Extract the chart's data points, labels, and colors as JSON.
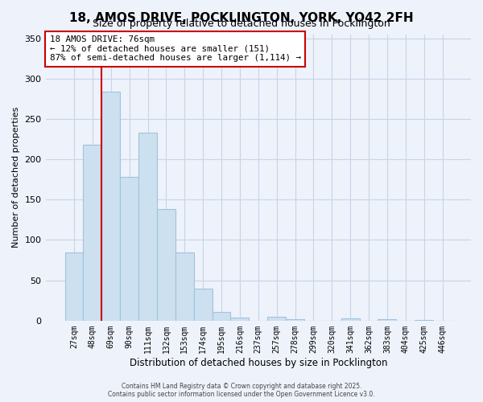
{
  "title_line1": "18, AMOS DRIVE, POCKLINGTON, YORK, YO42 2FH",
  "title_line2": "Size of property relative to detached houses in Pocklington",
  "xlabel": "Distribution of detached houses by size in Pocklington",
  "ylabel": "Number of detached properties",
  "bar_labels": [
    "27sqm",
    "48sqm",
    "69sqm",
    "90sqm",
    "111sqm",
    "132sqm",
    "153sqm",
    "174sqm",
    "195sqm",
    "216sqm",
    "237sqm",
    "257sqm",
    "278sqm",
    "299sqm",
    "320sqm",
    "341sqm",
    "362sqm",
    "383sqm",
    "404sqm",
    "425sqm",
    "446sqm"
  ],
  "bar_values": [
    85,
    218,
    284,
    178,
    233,
    138,
    85,
    40,
    11,
    4,
    0,
    5,
    2,
    0,
    0,
    3,
    0,
    2,
    0,
    1,
    0
  ],
  "bar_color": "#cce0f0",
  "bar_edge_color": "#a0c4dc",
  "vline_color": "#cc0000",
  "annotation_text": "18 AMOS DRIVE: 76sqm\n← 12% of detached houses are smaller (151)\n87% of semi-detached houses are larger (1,114) →",
  "annotation_box_color": "white",
  "annotation_box_edge": "#cc0000",
  "ylim": [
    0,
    355
  ],
  "yticks": [
    0,
    50,
    100,
    150,
    200,
    250,
    300,
    350
  ],
  "footer_line1": "Contains HM Land Registry data © Crown copyright and database right 2025.",
  "footer_line2": "Contains public sector information licensed under the Open Government Licence v3.0.",
  "bg_color": "#eef2fb",
  "grid_color": "#c8d4e8",
  "title1_fontsize": 11,
  "title2_fontsize": 9
}
